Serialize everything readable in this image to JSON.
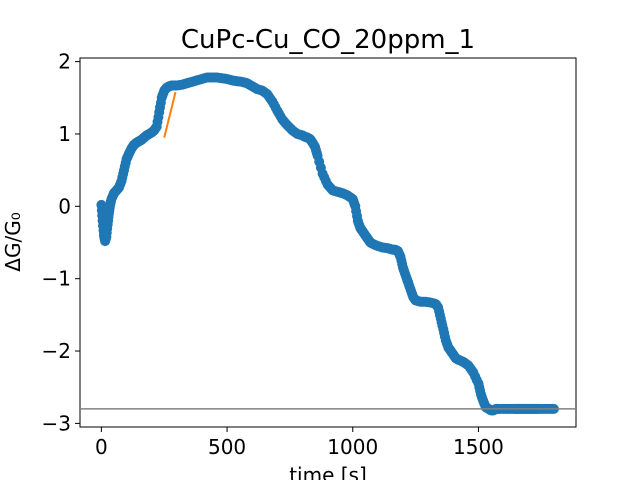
{
  "chart_data": {
    "type": "scatter",
    "title": "CuPc-Cu_CO_20ppm_1",
    "xlabel": "time [s]",
    "ylabel": "ΔG/G₀",
    "xlim": [
      -85,
      1888
    ],
    "ylim": [
      -3.05,
      2.05
    ],
    "xticks": [
      0,
      500,
      1000,
      1500
    ],
    "yticks": [
      -3,
      -2,
      -1,
      0,
      1,
      2
    ],
    "xtick_labels": [
      "0",
      "500",
      "1000",
      "1500"
    ],
    "ytick_labels": [
      "−3",
      "−2",
      "−1",
      "0",
      "1",
      "2"
    ],
    "grid": false,
    "colors": {
      "points": "#1f77b4",
      "fit": "#ff7f0e",
      "baseline": "#808080"
    },
    "series": [
      {
        "kind": "scatter",
        "x": [
          0,
          5,
          10,
          15,
          20,
          25,
          30,
          35,
          40,
          50,
          60,
          70,
          80,
          90,
          100,
          110,
          120,
          130,
          140,
          150,
          160,
          170,
          180,
          190,
          200,
          210,
          220,
          230,
          240,
          250,
          260,
          270,
          280,
          290,
          300,
          320,
          340,
          360,
          380,
          400,
          420,
          440,
          460,
          480,
          500,
          520,
          540,
          560,
          580,
          600,
          620,
          640,
          660,
          680,
          700,
          720,
          740,
          760,
          780,
          800,
          810,
          820,
          830,
          840,
          850,
          860,
          880,
          900,
          920,
          940,
          960,
          980,
          1000,
          1010,
          1020,
          1030,
          1040,
          1050,
          1060,
          1070,
          1080,
          1100,
          1120,
          1140,
          1160,
          1170,
          1180,
          1190,
          1200,
          1210,
          1220,
          1230,
          1240,
          1250,
          1270,
          1290,
          1310,
          1330,
          1340,
          1350,
          1360,
          1370,
          1380,
          1390,
          1400,
          1410,
          1420,
          1440,
          1460,
          1480,
          1500,
          1510,
          1520,
          1530,
          1540,
          1550,
          1560,
          1570,
          1580,
          1600,
          1620,
          1640,
          1650,
          1660,
          1670,
          1680,
          1690,
          1700,
          1710,
          1720,
          1730,
          1740,
          1760,
          1780,
          1800
        ],
        "y": [
          0.02,
          -0.2,
          -0.4,
          -0.48,
          -0.42,
          -0.25,
          -0.1,
          0.02,
          0.1,
          0.18,
          0.22,
          0.26,
          0.35,
          0.5,
          0.65,
          0.73,
          0.8,
          0.85,
          0.88,
          0.9,
          0.92,
          0.95,
          0.98,
          1.0,
          1.02,
          1.05,
          1.1,
          1.3,
          1.5,
          1.6,
          1.64,
          1.66,
          1.67,
          1.67,
          1.67,
          1.68,
          1.7,
          1.72,
          1.74,
          1.76,
          1.78,
          1.78,
          1.78,
          1.77,
          1.76,
          1.74,
          1.73,
          1.72,
          1.7,
          1.66,
          1.62,
          1.6,
          1.55,
          1.45,
          1.32,
          1.2,
          1.12,
          1.05,
          1.0,
          0.98,
          0.96,
          0.95,
          0.93,
          0.88,
          0.82,
          0.7,
          0.45,
          0.3,
          0.22,
          0.2,
          0.18,
          0.15,
          0.1,
          0.0,
          -0.2,
          -0.3,
          -0.35,
          -0.4,
          -0.45,
          -0.5,
          -0.52,
          -0.55,
          -0.57,
          -0.58,
          -0.6,
          -0.6,
          -0.62,
          -0.7,
          -0.85,
          -0.95,
          -1.05,
          -1.15,
          -1.25,
          -1.3,
          -1.32,
          -1.32,
          -1.33,
          -1.35,
          -1.4,
          -1.55,
          -1.7,
          -1.85,
          -1.95,
          -2.0,
          -2.05,
          -2.1,
          -2.12,
          -2.15,
          -2.2,
          -2.3,
          -2.45,
          -2.6,
          -2.7,
          -2.78,
          -2.8,
          -2.82,
          -2.82,
          -2.8,
          -2.8,
          -2.8,
          -2.8,
          -2.8,
          -2.8,
          -2.8,
          -2.8,
          -2.8,
          -2.8,
          -2.8,
          -2.8,
          -2.8,
          -2.8,
          -2.8,
          -2.8,
          -2.8,
          -2.8
        ]
      },
      {
        "kind": "line",
        "x": [
          250,
          295
        ],
        "y": [
          0.95,
          1.58
        ]
      },
      {
        "kind": "hline",
        "y": -2.8
      }
    ]
  }
}
